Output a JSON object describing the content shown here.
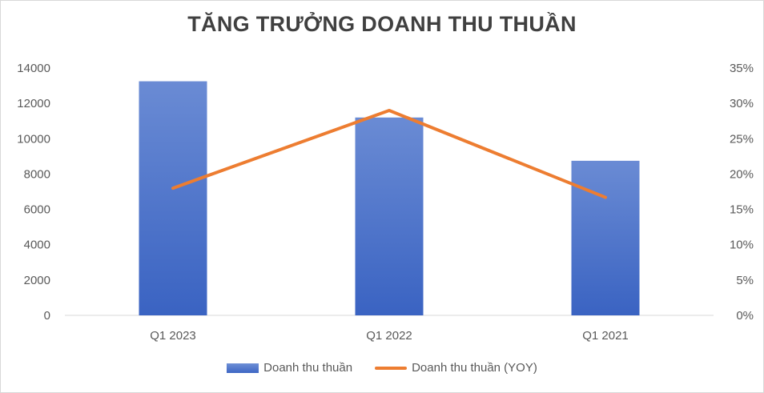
{
  "chart_data": {
    "type": "bar",
    "title": "TĂNG TRƯỞNG DOANH THU THUẦN",
    "categories": [
      "Q1 2023",
      "Q1 2022",
      "Q1 2021"
    ],
    "series": [
      {
        "name": "Doanh thu thuần",
        "type": "bar",
        "axis": "left",
        "values": [
          13250,
          11200,
          8750
        ]
      },
      {
        "name": "Doanh thu thuần (YOY)",
        "type": "line",
        "axis": "right",
        "values": [
          0.18,
          0.29,
          0.167
        ]
      }
    ],
    "y_left": {
      "ylim": [
        0,
        14000
      ],
      "ticks": [
        "14000",
        "12000",
        "10000",
        "8000",
        "6000",
        "4000",
        "2000",
        "0"
      ]
    },
    "y_right": {
      "ylim": [
        0,
        0.35
      ],
      "ticks": [
        "35%",
        "30%",
        "25%",
        "20%",
        "15%",
        "10%",
        "5%",
        "0%"
      ]
    },
    "grid": false,
    "legend": "bottom",
    "colors": {
      "bar": "#4472c4",
      "line": "#ed7d31"
    }
  }
}
